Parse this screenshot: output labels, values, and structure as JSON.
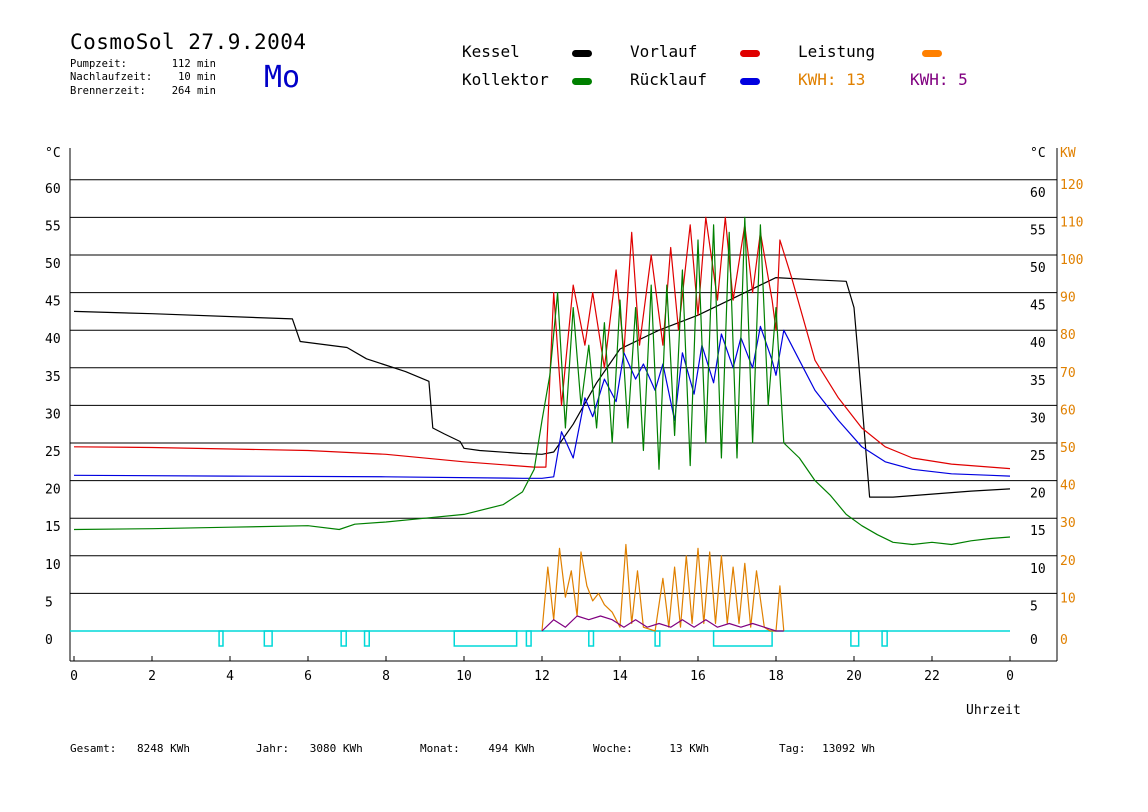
{
  "header": {
    "title": "CosmoSol 27.9.2004",
    "day": "Mo",
    "stats": [
      {
        "label": "Pumpzeit:",
        "value": "112 min"
      },
      {
        "label": "Nachlaufzeit:",
        "value": "10 min"
      },
      {
        "label": "Brennerzeit:",
        "value": "264 min"
      }
    ]
  },
  "legend": {
    "kessel": {
      "label": "Kessel",
      "color": "#000000"
    },
    "vorlauf": {
      "label": "Vorlauf",
      "color": "#e00000"
    },
    "leistung": {
      "label": "Leistung",
      "color": "#ff8000"
    },
    "kollektor": {
      "label": "Kollektor",
      "color": "#008000"
    },
    "ruecklauf": {
      "label": "Rücklauf",
      "color": "#0000e0"
    },
    "kwh1": {
      "text": "KWH: 13",
      "color": "#e08000"
    },
    "kwh2": {
      "text": "KWH: 5",
      "color": "#800080"
    }
  },
  "footer": [
    {
      "label": "Gesamt:",
      "value": "8248 KWh"
    },
    {
      "label": "Jahr:",
      "value": "3080 KWh"
    },
    {
      "label": "Monat:",
      "value": "494 KWh"
    },
    {
      "label": "Woche:",
      "value": "13 KWh"
    },
    {
      "label": "Tag:",
      "value": "13092 Wh"
    }
  ],
  "chart_data": {
    "type": "line",
    "xlabel": "Uhrzeit",
    "ylabel_left": "°C",
    "ylabel_right_temp": "°C",
    "ylabel_right_power": "KW",
    "x_ticks": [
      "0",
      "2",
      "4",
      "6",
      "8",
      "10",
      "12",
      "14",
      "16",
      "18",
      "20",
      "22",
      "0"
    ],
    "y_ticks": [
      0,
      5,
      10,
      15,
      20,
      25,
      30,
      35,
      40,
      45,
      50,
      55,
      60
    ],
    "kw_ticks": [
      0,
      10,
      20,
      30,
      40,
      50,
      60,
      70,
      80,
      90,
      100,
      110,
      120
    ],
    "xlim": [
      0,
      24
    ],
    "ylim": [
      -4,
      66
    ],
    "grid": true,
    "series": [
      {
        "name": "Kessel",
        "color": "#000000",
        "x": [
          0,
          2,
          5.6,
          5.8,
          7,
          7.5,
          8.5,
          9.1,
          9.2,
          9.5,
          9.9,
          10.0,
          10.4,
          11.5,
          12.0,
          12.3,
          12.8,
          13.4,
          14.0,
          15.0,
          16.0,
          17.0,
          17.6,
          18.0,
          19.0,
          19.8,
          20.0,
          20.1,
          20.4,
          21,
          22,
          23,
          24
        ],
        "y": [
          42.5,
          42.2,
          41.5,
          38.5,
          37.7,
          36.2,
          34.5,
          33.2,
          27,
          26.2,
          25.2,
          24.3,
          24,
          23.6,
          23.5,
          23.8,
          27.5,
          33,
          37.5,
          40,
          42,
          44.5,
          46,
          47,
          46.7,
          46.5,
          43,
          37,
          17.8,
          17.8,
          18.2,
          18.6,
          18.9
        ]
      },
      {
        "name": "Vorlauf",
        "color": "#e00000",
        "x": [
          0,
          2,
          4,
          6,
          8,
          10,
          11.8,
          12.1,
          12.3,
          12.5,
          12.8,
          13.1,
          13.3,
          13.6,
          13.9,
          14.1,
          14.3,
          14.5,
          14.8,
          15.1,
          15.3,
          15.5,
          15.8,
          16.0,
          16.2,
          16.5,
          16.7,
          16.9,
          17.2,
          17.4,
          17.6,
          17.9,
          18.0,
          18.1,
          18.4,
          19.0,
          19.6,
          20.2,
          20.8,
          21.5,
          22.5,
          23.5,
          24
        ],
        "y": [
          24.5,
          24.4,
          24.2,
          24,
          23.5,
          22.5,
          21.8,
          21.8,
          45,
          30,
          46,
          38,
          45,
          35,
          48,
          37,
          53,
          38,
          50,
          38,
          51,
          40,
          54,
          42,
          55,
          44,
          55,
          44,
          54,
          45,
          53,
          44,
          40,
          52,
          47,
          36,
          31,
          27,
          24.5,
          23,
          22.2,
          21.8,
          21.6
        ]
      },
      {
        "name": "Rücklauf",
        "color": "#0000e0",
        "x": [
          0,
          4,
          8,
          11.5,
          12.0,
          12.3,
          12.5,
          12.8,
          13.1,
          13.3,
          13.6,
          13.9,
          14.1,
          14.4,
          14.6,
          14.9,
          15.1,
          15.4,
          15.6,
          15.9,
          16.1,
          16.4,
          16.6,
          16.9,
          17.1,
          17.4,
          17.6,
          17.9,
          18.0,
          18.2,
          18.6,
          19.0,
          19.6,
          20.2,
          20.8,
          21.5,
          22.5,
          23.5,
          24
        ],
        "y": [
          20.7,
          20.6,
          20.5,
          20.3,
          20.3,
          20.5,
          26.5,
          23,
          31,
          28.5,
          33.5,
          30.5,
          37,
          33.5,
          35.5,
          32,
          35.5,
          28,
          37,
          31.5,
          38,
          33,
          39.5,
          35,
          39,
          35,
          40.5,
          36,
          34,
          40,
          36,
          32,
          28,
          24.5,
          22.5,
          21.5,
          20.9,
          20.7,
          20.6
        ]
      },
      {
        "name": "Kollektor",
        "color": "#008000",
        "x": [
          0,
          2,
          4,
          6,
          6.8,
          7.2,
          8,
          9,
          10,
          11,
          11.5,
          11.8,
          12.0,
          12.2,
          12.4,
          12.6,
          12.8,
          13.0,
          13.2,
          13.4,
          13.6,
          13.8,
          14.0,
          14.2,
          14.4,
          14.6,
          14.8,
          15.0,
          15.2,
          15.4,
          15.6,
          15.8,
          16.0,
          16.2,
          16.4,
          16.6,
          16.8,
          17.0,
          17.2,
          17.4,
          17.6,
          17.8,
          18.0,
          18.2,
          18.6,
          19.0,
          19.4,
          19.8,
          20.2,
          20.6,
          21.0,
          21.5,
          22.0,
          22.5,
          23.0,
          23.5,
          24
        ],
        "y": [
          13.5,
          13.6,
          13.8,
          14,
          13.5,
          14.2,
          14.5,
          15,
          15.5,
          16.8,
          18.5,
          21.5,
          28,
          34,
          45,
          27,
          43,
          30,
          38,
          27,
          41,
          25,
          44,
          27,
          43,
          24,
          46,
          21.5,
          46,
          26,
          48,
          22,
          52,
          25,
          54,
          23,
          53,
          23,
          55,
          25,
          54,
          30,
          43,
          25,
          23,
          20,
          18,
          15.5,
          14,
          12.8,
          11.8,
          11.5,
          11.8,
          11.5,
          12.0,
          12.3,
          12.5
        ]
      },
      {
        "name": "Leistung",
        "color": "#e08000",
        "axis": "kw",
        "x": [
          12.0,
          12.15,
          12.3,
          12.45,
          12.6,
          12.75,
          12.9,
          13.0,
          13.15,
          13.3,
          13.45,
          13.6,
          13.8,
          14.0,
          14.15,
          14.3,
          14.45,
          14.6,
          14.9,
          15.1,
          15.25,
          15.4,
          15.55,
          15.7,
          15.85,
          16.0,
          16.15,
          16.3,
          16.45,
          16.6,
          16.75,
          16.9,
          17.05,
          17.2,
          17.35,
          17.5,
          17.7,
          17.85,
          18.0,
          18.1,
          18.2
        ],
        "y": [
          0,
          17,
          3,
          22,
          9,
          16,
          4,
          21,
          12,
          8,
          10,
          7,
          5,
          1,
          23,
          2,
          16,
          1,
          0,
          14,
          1,
          17,
          1,
          20,
          2,
          22,
          2,
          21,
          2,
          20,
          2,
          17,
          2,
          18,
          1,
          16,
          1,
          0,
          0,
          12,
          0
        ]
      },
      {
        "name": "Leistung (Rücklauf)",
        "color": "#800080",
        "axis": "kw",
        "x": [
          12.0,
          12.3,
          12.6,
          12.9,
          13.2,
          13.5,
          13.8,
          14.1,
          14.4,
          14.7,
          15.0,
          15.3,
          15.6,
          15.9,
          16.2,
          16.5,
          16.8,
          17.1,
          17.4,
          17.7,
          18.0,
          18.2
        ],
        "y": [
          0,
          3,
          1,
          4,
          3,
          4,
          3,
          1,
          3,
          1,
          2,
          1,
          3,
          1,
          3,
          1,
          2,
          1,
          2,
          1,
          0,
          0
        ]
      }
    ],
    "status_pulses": [
      {
        "start": 3.72,
        "end": 3.82
      },
      {
        "start": 4.88,
        "end": 5.08
      },
      {
        "start": 6.85,
        "end": 6.98
      },
      {
        "start": 7.45,
        "end": 7.57
      },
      {
        "start": 9.75,
        "end": 11.35
      },
      {
        "start": 11.6,
        "end": 11.72
      },
      {
        "start": 13.2,
        "end": 13.32
      },
      {
        "start": 14.9,
        "end": 15.02
      },
      {
        "start": 16.4,
        "end": 17.9
      },
      {
        "start": 19.92,
        "end": 20.12
      },
      {
        "start": 20.72,
        "end": 20.85
      }
    ],
    "status_color": "#00d8d8"
  }
}
